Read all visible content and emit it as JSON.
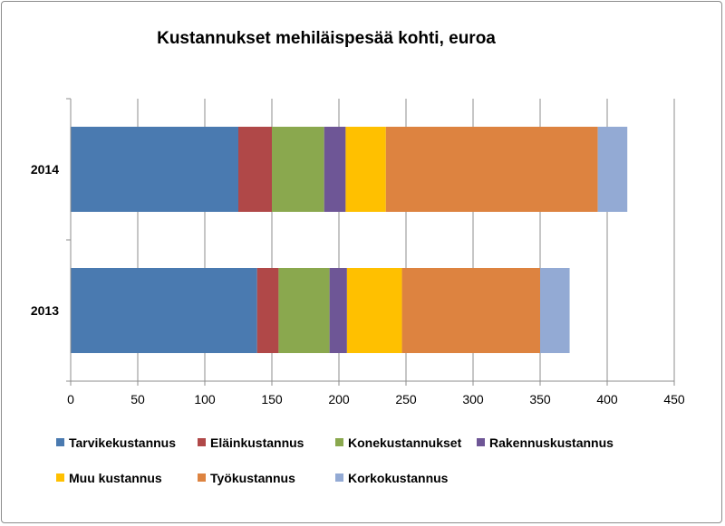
{
  "chart_data": {
    "type": "bar",
    "orientation": "horizontal",
    "stacked": true,
    "title": "Kustannukset mehiläispesää kohti, euroa",
    "xlabel": "",
    "ylabel": "",
    "xlim": [
      0,
      450
    ],
    "xticks": [
      0,
      50,
      100,
      150,
      200,
      250,
      300,
      350,
      400,
      450
    ],
    "categories": [
      "2014",
      "2013"
    ],
    "grid": true,
    "legend_position": "bottom",
    "series": [
      {
        "name": "Tarvikekustannus",
        "color": "#4a7ab0",
        "values": [
          125,
          139
        ]
      },
      {
        "name": "Eläinkustannus",
        "color": "#b04848",
        "values": [
          25,
          16
        ]
      },
      {
        "name": "Konekustannukset",
        "color": "#8aa84e",
        "values": [
          39,
          38
        ]
      },
      {
        "name": "Rakennuskustannus",
        "color": "#6e5696",
        "values": [
          16,
          13
        ]
      },
      {
        "name": "Muu kustannus",
        "color": "#ffc000",
        "values": [
          30,
          41
        ]
      },
      {
        "name": "Työkustannus",
        "color": "#dd8340",
        "values": [
          158,
          103
        ]
      },
      {
        "name": "Korkokustannus",
        "color": "#93aad4",
        "values": [
          22,
          22
        ]
      }
    ]
  }
}
